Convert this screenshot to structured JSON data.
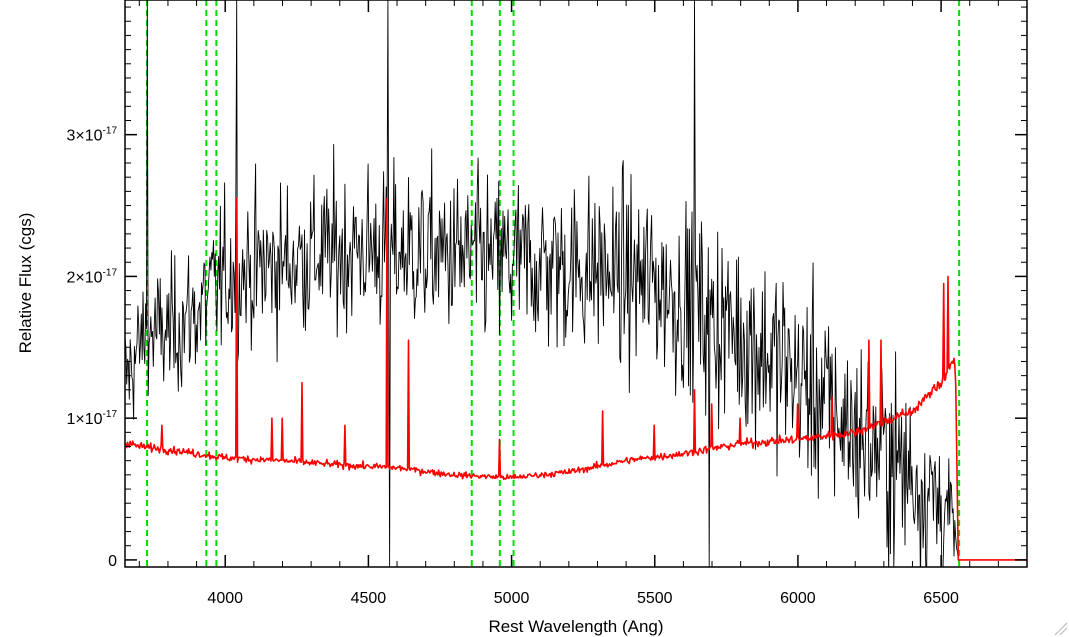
{
  "chart_data": {
    "type": "line",
    "xlabel": "Rest Wavelength (Ang)",
    "ylabel": "Relative Flux (cgs)",
    "xlim": [
      3650,
      6800
    ],
    "ylim": [
      -5e-19,
      3.95e-17
    ],
    "x_ticks": [
      4000,
      4500,
      5000,
      5500,
      6000,
      6500
    ],
    "x_tick_labels": [
      "4000",
      "4500",
      "5000",
      "5500",
      "6000",
      "6500"
    ],
    "y_ticks": [
      {
        "value": 0,
        "mantissa": "0",
        "exponent": ""
      },
      {
        "value": 1e-17,
        "mantissa": "1×10",
        "exponent": "-17"
      },
      {
        "value": 2e-17,
        "mantissa": "2×10",
        "exponent": "-17"
      },
      {
        "value": 3e-17,
        "mantissa": "3×10",
        "exponent": "-17"
      }
    ],
    "grid": false,
    "legend": "none",
    "series": [
      {
        "role": "observed spectrum",
        "color": "#000000",
        "sampling_step_ang": 3,
        "noise_amplitude_scale": 1.0,
        "continuum": {
          "x": [
            3660,
            3720,
            3800,
            3900,
            4000,
            4300,
            4500,
            4800,
            5000,
            5300,
            5500,
            5800,
            6000,
            6200,
            6400,
            6540,
            6560,
            6800
          ],
          "y": [
            1.3e-17,
            1.6e-17,
            1.6e-17,
            1.75e-17,
            2e-17,
            2.15e-17,
            2.2e-17,
            2.15e-17,
            2.1e-17,
            2.05e-17,
            1.95e-17,
            1.6e-17,
            1.3e-17,
            9e-18,
            6e-18,
            3e-18,
            0.0,
            0.0
          ]
        },
        "noise_rms": {
          "x": [
            3660,
            4000,
            5000,
            5500,
            6000,
            6500,
            6560,
            6800
          ],
          "y": [
            3.5e-18,
            4.5e-18,
            5e-18,
            5.5e-18,
            6e-18,
            5.5e-18,
            0.0,
            0.0
          ]
        },
        "spikes": [
          {
            "x": 3730,
            "y": 3.95e-17
          },
          {
            "x": 4040,
            "y": 3.95e-17
          },
          {
            "x": 4570,
            "y": 3.95e-17
          },
          {
            "x": 4575,
            "y": -5e-19
          },
          {
            "x": 5640,
            "y": 3.95e-17
          },
          {
            "x": 5690,
            "y": -5e-19
          }
        ]
      },
      {
        "role": "error spectrum",
        "color": "#ff0000",
        "sampling_step_ang": 3,
        "noise_amplitude_scale": 0.03,
        "continuum": {
          "x": [
            3650,
            3700,
            3800,
            3900,
            4000,
            4200,
            4400,
            4600,
            4800,
            5000,
            5200,
            5400,
            5600,
            5800,
            6000,
            6200,
            6400,
            6500,
            6540,
            6550,
            6560,
            6800
          ],
          "y": [
            8.3e-18,
            8e-18,
            7.8e-18,
            7.5e-18,
            7.2e-18,
            7e-18,
            6.7e-18,
            6.5e-18,
            6e-18,
            5.8e-18,
            6.2e-18,
            7e-18,
            7.5e-18,
            8.2e-18,
            8.5e-18,
            9e-18,
            1.05e-17,
            1.25e-17,
            1.4e-17,
            1.4e-17,
            0.0,
            0.0
          ]
        },
        "spikes": [
          {
            "x": 3780,
            "y": 9.5e-18
          },
          {
            "x": 4040,
            "y": 2.55e-17
          },
          {
            "x": 4165,
            "y": 1e-17
          },
          {
            "x": 4200,
            "y": 1e-17
          },
          {
            "x": 4270,
            "y": 1.25e-17
          },
          {
            "x": 4420,
            "y": 9.5e-18
          },
          {
            "x": 4565,
            "y": 2.55e-17
          },
          {
            "x": 4640,
            "y": 1.55e-17
          },
          {
            "x": 4960,
            "y": 8.5e-18
          },
          {
            "x": 5320,
            "y": 1.05e-17
          },
          {
            "x": 5500,
            "y": 9.5e-18
          },
          {
            "x": 5640,
            "y": 1.2e-17
          },
          {
            "x": 5700,
            "y": 1.1e-17
          },
          {
            "x": 5800,
            "y": 1e-17
          },
          {
            "x": 6000,
            "y": 1.1e-17
          },
          {
            "x": 6120,
            "y": 1.15e-17
          },
          {
            "x": 6250,
            "y": 1.55e-17
          },
          {
            "x": 6290,
            "y": 1.55e-17
          },
          {
            "x": 6510,
            "y": 1.95e-17
          },
          {
            "x": 6525,
            "y": 2e-17
          }
        ]
      }
    ],
    "reference_lines": {
      "color": "#00dd00",
      "style": "dashed",
      "x": [
        3727,
        3934,
        3969,
        4861,
        4959,
        5007,
        6563
      ]
    }
  }
}
